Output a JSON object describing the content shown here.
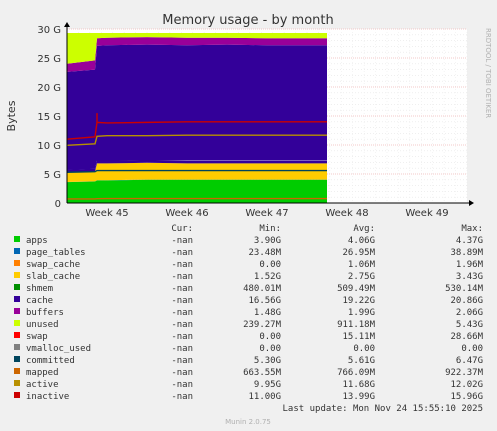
{
  "chart_data": {
    "type": "area",
    "title": "Memory usage - by month",
    "ylabel": "Bytes",
    "side_label": "RRDTOOL / TOBI OETIKER",
    "ylim": [
      0,
      30
    ],
    "y_unit": "G",
    "y_ticks": [
      0,
      5,
      10,
      15,
      20,
      25,
      30
    ],
    "y_tick_labels": [
      "0",
      "5 G",
      "10 G",
      "15 G",
      "20 G",
      "25 G",
      "30 G"
    ],
    "x_tick_labels": [
      "Week 45",
      "Week 46",
      "Week 47",
      "Week 48",
      "Week 49"
    ],
    "x_range": [
      0,
      1
    ],
    "data_end": 0.65,
    "x": [
      0,
      0.07,
      0.075,
      0.1,
      0.2,
      0.3,
      0.4,
      0.5,
      0.6,
      0.65
    ],
    "stack": [
      {
        "name": "apps",
        "color": "#00cc00",
        "values": [
          3.6,
          3.7,
          3.9,
          3.9,
          4.0,
          4.0,
          4.0,
          4.0,
          4.0,
          4.0
        ]
      },
      {
        "name": "page_tables",
        "color": "#0066b3",
        "values": [
          0.03,
          0.03,
          0.03,
          0.03,
          0.03,
          0.03,
          0.03,
          0.03,
          0.03,
          0.03
        ]
      },
      {
        "name": "swap_cache",
        "color": "#ff8000",
        "values": [
          0,
          0,
          0,
          0,
          0,
          0,
          0,
          0,
          0,
          0
        ]
      },
      {
        "name": "slab_cache",
        "color": "#ffcc00",
        "values": [
          1.6,
          1.7,
          2.9,
          2.9,
          2.9,
          2.8,
          2.8,
          2.8,
          2.8,
          2.8
        ]
      },
      {
        "name": "shmem",
        "color": "#330099",
        "values": [
          0.5,
          0.5,
          0.5,
          0.5,
          0.5,
          0.5,
          0.5,
          0.5,
          0.5,
          0.5
        ]
      },
      {
        "name": "cache",
        "color": "#990099",
        "values": [
          0,
          0,
          0,
          0,
          0,
          0,
          0,
          0,
          0,
          0
        ]
      },
      {
        "name": "buffers",
        "color": "#ccff00",
        "values": [
          0,
          0,
          0,
          0,
          0,
          0,
          0,
          0,
          0,
          0
        ]
      },
      {
        "name": "unused",
        "color": "#ff0000",
        "values": [
          0,
          0,
          0,
          0,
          0,
          0,
          0,
          0,
          0,
          0
        ]
      }
    ],
    "bands": [
      {
        "name": "cache",
        "color": "#330099",
        "from": [
          5.7,
          5.9,
          7.3,
          7.3,
          7.4,
          7.4,
          7.4,
          7.4,
          7.4,
          7.4
        ],
        "to": [
          22.6,
          23.0,
          27.1,
          27.2,
          27.3,
          27.2,
          27.3,
          27.2,
          27.2,
          27.2
        ]
      },
      {
        "name": "buffers",
        "color": "#990099",
        "from": [
          22.6,
          23.0,
          27.1,
          27.2,
          27.3,
          27.2,
          27.3,
          27.2,
          27.2,
          27.2
        ],
        "to": [
          24.0,
          24.6,
          28.4,
          28.5,
          28.6,
          28.5,
          28.5,
          28.4,
          28.4,
          28.4
        ]
      },
      {
        "name": "unused",
        "color": "#ccff00",
        "from": [
          24.0,
          24.6,
          28.4,
          28.5,
          28.6,
          28.5,
          28.5,
          28.4,
          28.4,
          28.4
        ],
        "to": [
          29.3,
          29.3,
          29.3,
          29.3,
          29.3,
          29.3,
          29.3,
          29.3,
          29.3,
          29.3
        ]
      }
    ],
    "lines": [
      {
        "name": "committed",
        "color": "#00455d",
        "values": [
          5.3,
          5.4,
          5.6,
          5.6,
          5.6,
          5.6,
          5.6,
          5.6,
          5.6,
          5.6
        ]
      },
      {
        "name": "active",
        "color": "#b89000",
        "values": [
          9.95,
          10.2,
          11.5,
          11.6,
          11.6,
          11.7,
          11.7,
          11.7,
          11.7,
          11.7
        ]
      },
      {
        "name": "inactive",
        "color": "#cc0000",
        "values": [
          11.0,
          11.4,
          13.9,
          13.8,
          13.9,
          14.0,
          14.0,
          14.0,
          14.0,
          14.0
        ]
      },
      {
        "name": "mapped",
        "color": "#cc6600",
        "values": [
          0.7,
          0.7,
          0.75,
          0.77,
          0.77,
          0.77,
          0.77,
          0.77,
          0.77,
          0.77
        ]
      }
    ],
    "spike": {
      "x": 0.075,
      "value": 15.5,
      "color": "#cc0000"
    },
    "legend_header": {
      "cur": "Cur:",
      "min": "Min:",
      "avg": "Avg:",
      "max": "Max:"
    },
    "legend": [
      {
        "name": "apps",
        "color": "#00cc00",
        "cur": "-nan",
        "min": "3.90G",
        "avg": "4.06G",
        "max": "4.37G"
      },
      {
        "name": "page_tables",
        "color": "#0066b3",
        "cur": "-nan",
        "min": "23.48M",
        "avg": "26.95M",
        "max": "38.89M"
      },
      {
        "name": "swap_cache",
        "color": "#ff8000",
        "cur": "-nan",
        "min": "0.00",
        "avg": "1.06M",
        "max": "1.96M"
      },
      {
        "name": "slab_cache",
        "color": "#ffcc00",
        "cur": "-nan",
        "min": "1.52G",
        "avg": "2.75G",
        "max": "3.43G"
      },
      {
        "name": "shmem",
        "color": "#008f00",
        "cur": "-nan",
        "min": "480.01M",
        "avg": "509.49M",
        "max": "530.14M"
      },
      {
        "name": "cache",
        "color": "#330099",
        "cur": "-nan",
        "min": "16.56G",
        "avg": "19.22G",
        "max": "20.86G"
      },
      {
        "name": "buffers",
        "color": "#990099",
        "cur": "-nan",
        "min": "1.48G",
        "avg": "1.99G",
        "max": "2.06G"
      },
      {
        "name": "unused",
        "color": "#ccff00",
        "cur": "-nan",
        "min": "239.27M",
        "avg": "911.18M",
        "max": "5.43G"
      },
      {
        "name": "swap",
        "color": "#ff0000",
        "cur": "-nan",
        "min": "0.00",
        "avg": "15.11M",
        "max": "28.66M"
      },
      {
        "name": "vmalloc_used",
        "color": "#808080",
        "cur": "-nan",
        "min": "0.00",
        "avg": "0.00",
        "max": "0.00"
      },
      {
        "name": "committed",
        "color": "#00455d",
        "cur": "-nan",
        "min": "5.30G",
        "avg": "5.61G",
        "max": "6.47G"
      },
      {
        "name": "mapped",
        "color": "#cc6600",
        "cur": "-nan",
        "min": "663.55M",
        "avg": "766.09M",
        "max": "922.37M"
      },
      {
        "name": "active",
        "color": "#b89000",
        "cur": "-nan",
        "min": "9.95G",
        "avg": "11.68G",
        "max": "12.02G"
      },
      {
        "name": "inactive",
        "color": "#cc0000",
        "cur": "-nan",
        "min": "11.00G",
        "avg": "13.99G",
        "max": "15.96G"
      }
    ],
    "last_update": "Last update: Mon Nov 24 15:55:10 2025",
    "footer": "Munin 2.0.75"
  }
}
